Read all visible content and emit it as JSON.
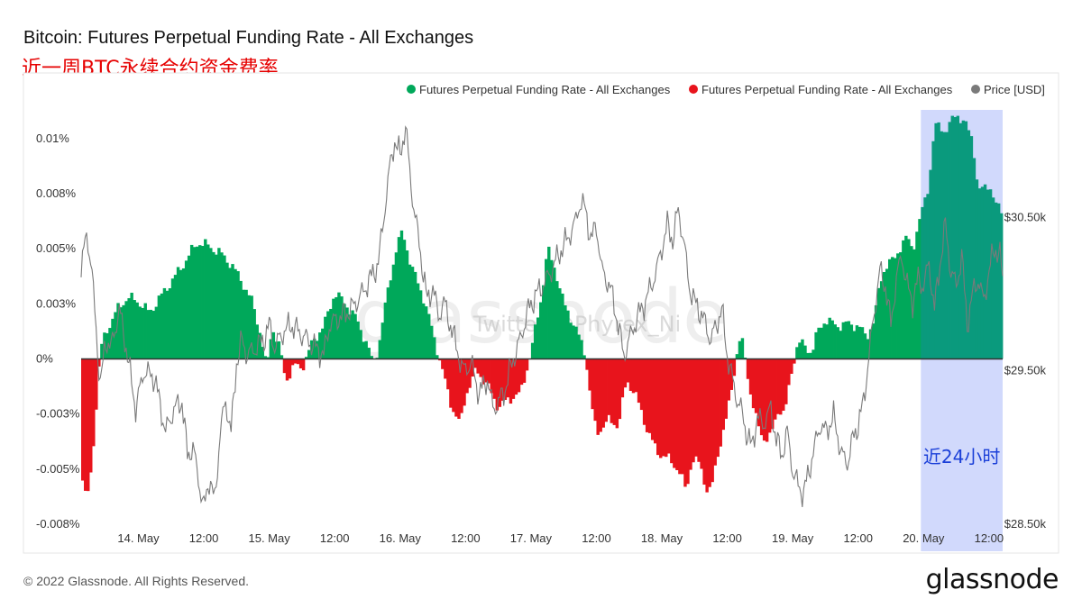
{
  "header": {
    "title": "Bitcoin: Futures Perpetual Funding Rate - All Exchanges",
    "subtitle": "近一周BTC永续合约资金费率"
  },
  "footer": {
    "copyright": "© 2022 Glassnode. All Rights Reserved.",
    "brand": "glassnode"
  },
  "watermark": {
    "brand": "glassnode",
    "handle": "Twitter @Phyrex_Ni"
  },
  "colors": {
    "positive": "#00a85a",
    "negative": "#e8141c",
    "price": "#7a7a7a",
    "highlight": "#c9d2fb",
    "annotation": "#1a3fd8"
  },
  "chart_data": {
    "type": "bar",
    "title": "Bitcoin: Futures Perpetual Funding Rate - All Exchanges",
    "legend_position": "top-right",
    "legend": [
      {
        "label": "Futures Perpetual Funding Rate - All Exchanges",
        "color": "#00a85a"
      },
      {
        "label": "Futures Perpetual Funding Rate - All Exchanges",
        "color": "#e8141c"
      },
      {
        "label": "Price [USD]",
        "color": "#7a7a7a"
      }
    ],
    "x_ticks": [
      {
        "label": "14. May",
        "h": 24
      },
      {
        "label": "12:00",
        "h": 36
      },
      {
        "label": "15. May",
        "h": 48
      },
      {
        "label": "12:00",
        "h": 60
      },
      {
        "label": "16. May",
        "h": 72
      },
      {
        "label": "12:00",
        "h": 84
      },
      {
        "label": "17. May",
        "h": 96
      },
      {
        "label": "12:00",
        "h": 108
      },
      {
        "label": "18. May",
        "h": 120
      },
      {
        "label": "12:00",
        "h": 132
      },
      {
        "label": "19. May",
        "h": 144
      },
      {
        "label": "12:00",
        "h": 156
      },
      {
        "label": "20. May",
        "h": 168
      },
      {
        "label": "12:00",
        "h": 180
      }
    ],
    "x_range_hours": [
      13.5,
      182.5
    ],
    "y_left_ticks": [
      {
        "label": "0.01%",
        "v": 0.01
      },
      {
        "label": "0.008%",
        "v": 0.0075
      },
      {
        "label": "0.005%",
        "v": 0.005
      },
      {
        "label": "0.003%",
        "v": 0.0025
      },
      {
        "label": "0%",
        "v": 0
      },
      {
        "label": "-0.003%",
        "v": -0.0025
      },
      {
        "label": "-0.005%",
        "v": -0.005
      },
      {
        "label": "-0.008%",
        "v": -0.0075
      }
    ],
    "y_left_range": [
      -0.0075,
      0.0113
    ],
    "y_right_ticks": [
      {
        "label": "$30.50k",
        "v": 30500
      },
      {
        "label": "$29.50k",
        "v": 29500
      },
      {
        "label": "$28.50k",
        "v": 28500
      }
    ],
    "y_right_range": [
      28500,
      31200
    ],
    "funding_rate_keypoints": [
      [
        13.5,
        -0.005
      ],
      [
        14.2,
        -0.0062
      ],
      [
        15.0,
        -0.006
      ],
      [
        16.0,
        -0.003
      ],
      [
        17.0,
        0.0004
      ],
      [
        18.0,
        0.0012
      ],
      [
        20.0,
        0.0022
      ],
      [
        22.0,
        0.0028
      ],
      [
        24.0,
        0.0026
      ],
      [
        26.0,
        0.0021
      ],
      [
        28.0,
        0.0028
      ],
      [
        30.0,
        0.0035
      ],
      [
        32.0,
        0.0042
      ],
      [
        34.0,
        0.005
      ],
      [
        35.0,
        0.0053
      ],
      [
        37.0,
        0.0051
      ],
      [
        39.0,
        0.0048
      ],
      [
        41.0,
        0.0043
      ],
      [
        43.0,
        0.0035
      ],
      [
        45.0,
        0.0025
      ],
      [
        46.5,
        0.001
      ],
      [
        47.5,
        -0.0005
      ],
      [
        48.5,
        0.0015
      ],
      [
        50.0,
        0.0004
      ],
      [
        51.0,
        -0.001
      ],
      [
        52.5,
        -0.0003
      ],
      [
        54.0,
        -0.0004
      ],
      [
        56.0,
        0.0008
      ],
      [
        58.0,
        0.0015
      ],
      [
        60.0,
        0.003
      ],
      [
        62.0,
        0.0025
      ],
      [
        64.0,
        0.0018
      ],
      [
        66.0,
        0.0006
      ],
      [
        67.0,
        -0.0002
      ],
      [
        68.0,
        0.0005
      ],
      [
        70.0,
        0.0035
      ],
      [
        71.5,
        0.0052
      ],
      [
        72.5,
        0.0058
      ],
      [
        74.0,
        0.0042
      ],
      [
        76.0,
        0.003
      ],
      [
        78.0,
        0.0012
      ],
      [
        80.0,
        -0.0008
      ],
      [
        81.5,
        -0.0022
      ],
      [
        83.0,
        -0.003
      ],
      [
        84.0,
        -0.0016
      ],
      [
        86.0,
        -0.0005
      ],
      [
        88.0,
        -0.0012
      ],
      [
        90.0,
        -0.0022
      ],
      [
        92.0,
        -0.0018
      ],
      [
        94.0,
        -0.0016
      ],
      [
        96.0,
        0.0003
      ],
      [
        98.0,
        0.003
      ],
      [
        99.0,
        0.005
      ],
      [
        100.5,
        0.004
      ],
      [
        102.0,
        0.0025
      ],
      [
        104.0,
        0.0015
      ],
      [
        106.0,
        0.0002
      ],
      [
        107.0,
        -0.002
      ],
      [
        108.0,
        -0.0034
      ],
      [
        110.0,
        -0.0028
      ],
      [
        112.0,
        -0.003
      ],
      [
        113.5,
        -0.001
      ],
      [
        115.0,
        -0.0015
      ],
      [
        117.0,
        -0.003
      ],
      [
        119.0,
        -0.0042
      ],
      [
        121.0,
        -0.0045
      ],
      [
        123.0,
        -0.005
      ],
      [
        124.5,
        -0.006
      ],
      [
        125.5,
        -0.0045
      ],
      [
        127.0,
        -0.0048
      ],
      [
        128.0,
        -0.0058
      ],
      [
        129.0,
        -0.006
      ],
      [
        130.5,
        -0.004
      ],
      [
        132.0,
        -0.0025
      ],
      [
        133.0,
        -0.001
      ],
      [
        134.0,
        0.0007
      ],
      [
        134.5,
        0.001
      ],
      [
        135.2,
        0.0001
      ],
      [
        136.0,
        -0.0012
      ],
      [
        137.5,
        -0.003
      ],
      [
        138.5,
        -0.0036
      ],
      [
        140.0,
        -0.0035
      ],
      [
        141.5,
        -0.0022
      ],
      [
        142.5,
        -0.0025
      ],
      [
        143.5,
        -0.001
      ],
      [
        144.3,
        0.0001
      ],
      [
        145.0,
        0.0008
      ],
      [
        146.0,
        0.0006
      ],
      [
        147.5,
        0.0003
      ],
      [
        148.5,
        0.0012
      ],
      [
        150.0,
        0.0018
      ],
      [
        152.0,
        0.0015
      ],
      [
        154.0,
        0.0016
      ],
      [
        156.0,
        0.0015
      ],
      [
        157.5,
        0.001
      ],
      [
        159.0,
        0.0018
      ],
      [
        160.0,
        0.0035
      ],
      [
        161.0,
        0.0042
      ],
      [
        162.5,
        0.0045
      ],
      [
        164.0,
        0.0052
      ],
      [
        165.0,
        0.0055
      ],
      [
        166.0,
        0.005
      ],
      [
        167.0,
        0.006
      ],
      [
        168.0,
        0.007
      ],
      [
        169.0,
        0.008
      ],
      [
        170.0,
        0.0105
      ],
      [
        171.0,
        0.0106
      ],
      [
        172.0,
        0.0103
      ],
      [
        173.0,
        0.0107
      ],
      [
        174.0,
        0.0112
      ],
      [
        175.0,
        0.0108
      ],
      [
        176.0,
        0.0105
      ],
      [
        177.0,
        0.01
      ],
      [
        178.0,
        0.0075
      ],
      [
        179.0,
        0.0078
      ],
      [
        180.0,
        0.008
      ],
      [
        181.0,
        0.007
      ],
      [
        182.5,
        0.0068
      ]
    ],
    "price_keypoints": [
      [
        13.5,
        30150
      ],
      [
        14.5,
        30400
      ],
      [
        15.3,
        30200
      ],
      [
        16.0,
        29900
      ],
      [
        17.0,
        29400
      ],
      [
        18.0,
        29700
      ],
      [
        19.0,
        29650
      ],
      [
        20.5,
        29900
      ],
      [
        22.0,
        29600
      ],
      [
        23.5,
        29250
      ],
      [
        25.0,
        29500
      ],
      [
        27.0,
        29450
      ],
      [
        29.0,
        29100
      ],
      [
        30.5,
        29250
      ],
      [
        32.0,
        29300
      ],
      [
        33.0,
        28950
      ],
      [
        34.0,
        29000
      ],
      [
        35.0,
        28800
      ],
      [
        36.0,
        28600
      ],
      [
        37.0,
        28800
      ],
      [
        38.0,
        28650
      ],
      [
        39.0,
        29100
      ],
      [
        40.0,
        29300
      ],
      [
        41.0,
        29100
      ],
      [
        42.0,
        29550
      ],
      [
        43.0,
        29700
      ],
      [
        44.0,
        29600
      ],
      [
        45.5,
        29650
      ],
      [
        47.0,
        29700
      ],
      [
        48.0,
        29800
      ],
      [
        49.0,
        29650
      ],
      [
        50.5,
        29750
      ],
      [
        52.0,
        29800
      ],
      [
        53.5,
        29750
      ],
      [
        55.0,
        29700
      ],
      [
        56.5,
        29650
      ],
      [
        58.0,
        29600
      ],
      [
        59.0,
        29800
      ],
      [
        61.0,
        29850
      ],
      [
        63.0,
        29900
      ],
      [
        65.0,
        30000
      ],
      [
        66.5,
        30100
      ],
      [
        68.0,
        30200
      ],
      [
        69.0,
        30500
      ],
      [
        70.0,
        30800
      ],
      [
        71.0,
        31000
      ],
      [
        72.0,
        30900
      ],
      [
        73.0,
        31100
      ],
      [
        74.0,
        30700
      ],
      [
        75.0,
        30450
      ],
      [
        76.0,
        30200
      ],
      [
        77.0,
        29950
      ],
      [
        78.0,
        30050
      ],
      [
        79.0,
        29850
      ],
      [
        80.0,
        29950
      ],
      [
        82.0,
        29700
      ],
      [
        83.5,
        29500
      ],
      [
        85.0,
        29550
      ],
      [
        86.5,
        29350
      ],
      [
        88.0,
        29450
      ],
      [
        89.0,
        29250
      ],
      [
        91.0,
        29350
      ],
      [
        92.5,
        29550
      ],
      [
        94.0,
        29700
      ],
      [
        95.5,
        29900
      ],
      [
        97.0,
        30000
      ],
      [
        99.0,
        30100
      ],
      [
        101.0,
        30250
      ],
      [
        102.5,
        30350
      ],
      [
        104.0,
        30450
      ],
      [
        105.0,
        30600
      ],
      [
        106.0,
        30550
      ],
      [
        107.0,
        30350
      ],
      [
        108.0,
        30450
      ],
      [
        109.0,
        30150
      ],
      [
        110.5,
        30050
      ],
      [
        112.0,
        29800
      ],
      [
        113.0,
        29600
      ],
      [
        114.0,
        29700
      ],
      [
        115.5,
        29850
      ],
      [
        117.0,
        29950
      ],
      [
        118.0,
        30050
      ],
      [
        119.0,
        30150
      ],
      [
        120.0,
        30300
      ],
      [
        121.0,
        30450
      ],
      [
        122.0,
        30350
      ],
      [
        123.0,
        30550
      ],
      [
        124.0,
        30350
      ],
      [
        125.0,
        30050
      ],
      [
        126.0,
        29950
      ],
      [
        127.5,
        29850
      ],
      [
        129.0,
        29700
      ],
      [
        130.0,
        29800
      ],
      [
        131.0,
        29900
      ],
      [
        132.0,
        29600
      ],
      [
        133.5,
        29350
      ],
      [
        134.5,
        29250
      ],
      [
        135.5,
        29100
      ],
      [
        136.5,
        29000
      ],
      [
        137.5,
        29200
      ],
      [
        138.5,
        29150
      ],
      [
        140.0,
        29250
      ],
      [
        141.0,
        29050
      ],
      [
        142.0,
        28950
      ],
      [
        143.0,
        29100
      ],
      [
        144.0,
        28850
      ],
      [
        145.0,
        28750
      ],
      [
        146.0,
        28700
      ],
      [
        147.0,
        28850
      ],
      [
        148.0,
        29000
      ],
      [
        149.0,
        29150
      ],
      [
        150.0,
        29100
      ],
      [
        151.5,
        29200
      ],
      [
        153.0,
        28950
      ],
      [
        154.0,
        28900
      ],
      [
        155.0,
        29050
      ],
      [
        156.0,
        29150
      ],
      [
        157.0,
        29300
      ],
      [
        158.0,
        29600
      ],
      [
        159.0,
        29900
      ],
      [
        160.0,
        30150
      ],
      [
        161.0,
        30050
      ],
      [
        162.0,
        29800
      ],
      [
        163.0,
        30100
      ],
      [
        164.0,
        30250
      ],
      [
        165.0,
        30050
      ],
      [
        166.0,
        29950
      ],
      [
        167.0,
        30100
      ],
      [
        168.0,
        30050
      ],
      [
        169.0,
        30200
      ],
      [
        170.0,
        29900
      ],
      [
        171.0,
        30200
      ],
      [
        172.0,
        30450
      ],
      [
        173.0,
        30150
      ],
      [
        174.0,
        30050
      ],
      [
        175.0,
        30250
      ],
      [
        176.0,
        29800
      ],
      [
        177.0,
        30000
      ],
      [
        178.0,
        30100
      ],
      [
        179.0,
        29950
      ],
      [
        180.0,
        30150
      ],
      [
        181.0,
        30300
      ],
      [
        182.0,
        30250
      ],
      [
        182.5,
        30100
      ]
    ],
    "highlight": {
      "from_hour": 167.5,
      "to_hour": 182.5,
      "label": "近24小时"
    }
  }
}
